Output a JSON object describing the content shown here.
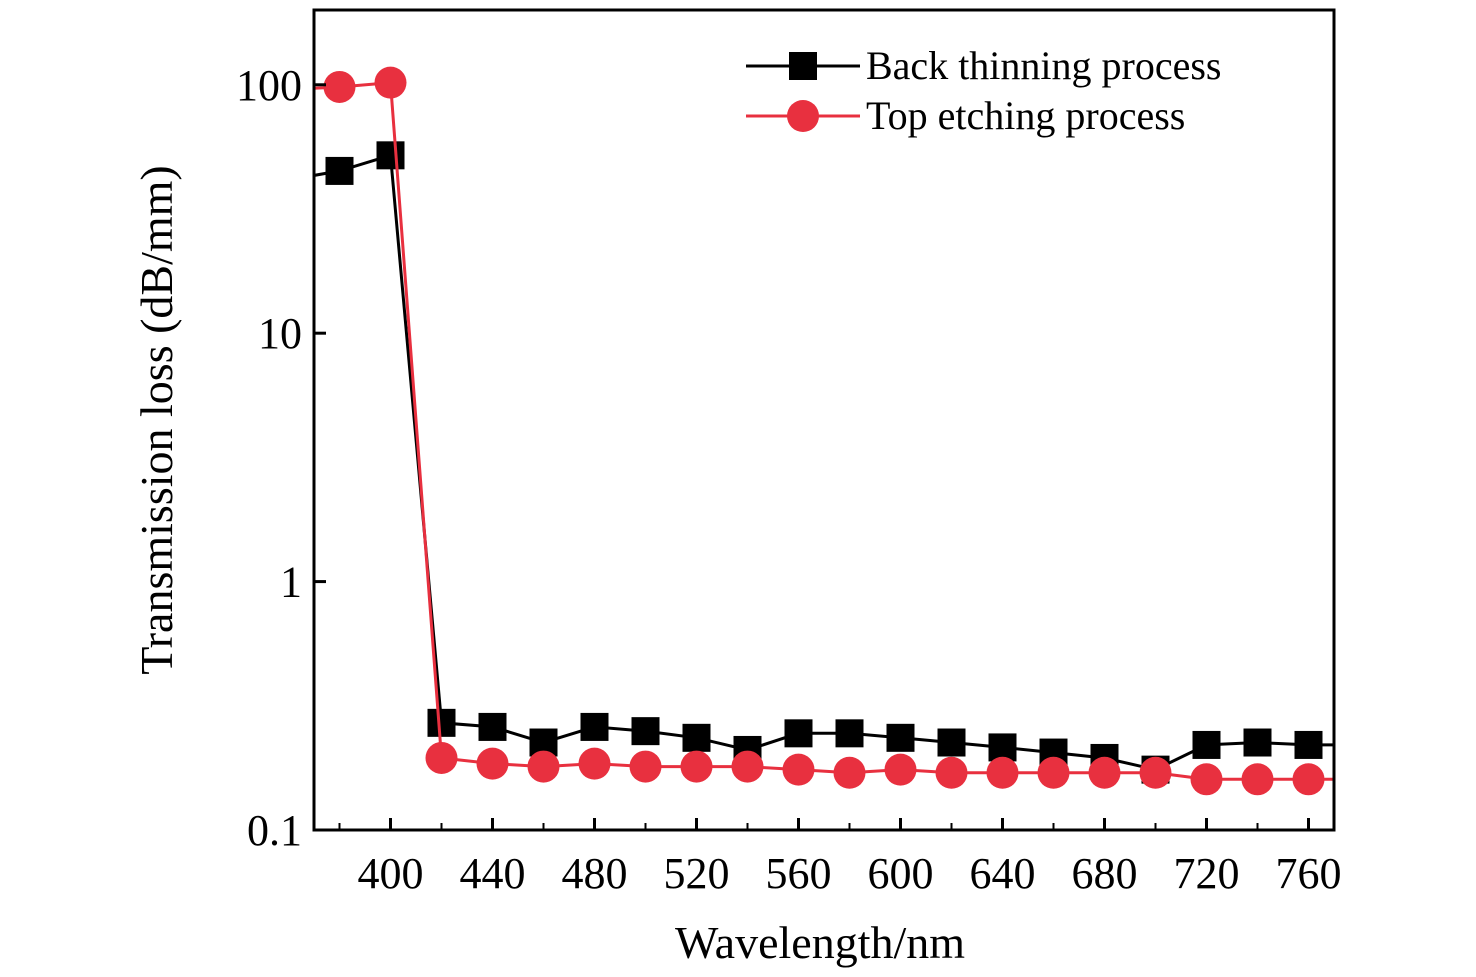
{
  "chart_data": {
    "type": "line",
    "xlabel": "Wavelength/nm",
    "ylabel": "Transmission loss (dB/mm)",
    "y_scale": "log",
    "xlim": [
      370,
      770
    ],
    "ylim": [
      0.1,
      200
    ],
    "x_ticks": [
      400,
      440,
      480,
      520,
      560,
      600,
      640,
      680,
      720,
      760
    ],
    "x_tick_labels": [
      "400",
      "440",
      "480",
      "520",
      "560",
      "600",
      "640",
      "680",
      "720",
      "760"
    ],
    "y_ticks": [
      0.1,
      1,
      10,
      100
    ],
    "y_tick_labels": [
      "0.1",
      "1",
      "10",
      "100"
    ],
    "grid": false,
    "legend_position": "top-right",
    "x": [
      380,
      400,
      420,
      440,
      460,
      480,
      500,
      520,
      540,
      560,
      580,
      600,
      620,
      640,
      660,
      680,
      700,
      720,
      740,
      760
    ],
    "series": [
      {
        "name": "Back thinning process",
        "color": "#000000",
        "marker": "square",
        "values": [
          45,
          52,
          0.27,
          0.26,
          0.225,
          0.26,
          0.25,
          0.235,
          0.21,
          0.245,
          0.245,
          0.235,
          0.225,
          0.215,
          0.205,
          0.195,
          0.175,
          0.22,
          0.225,
          0.22
        ]
      },
      {
        "name": "Top etching process",
        "color": "#e8303f",
        "marker": "circle",
        "values": [
          98,
          102,
          0.195,
          0.185,
          0.18,
          0.185,
          0.18,
          0.18,
          0.18,
          0.175,
          0.17,
          0.175,
          0.17,
          0.17,
          0.17,
          0.17,
          0.17,
          0.16,
          0.16,
          0.16
        ]
      }
    ]
  }
}
